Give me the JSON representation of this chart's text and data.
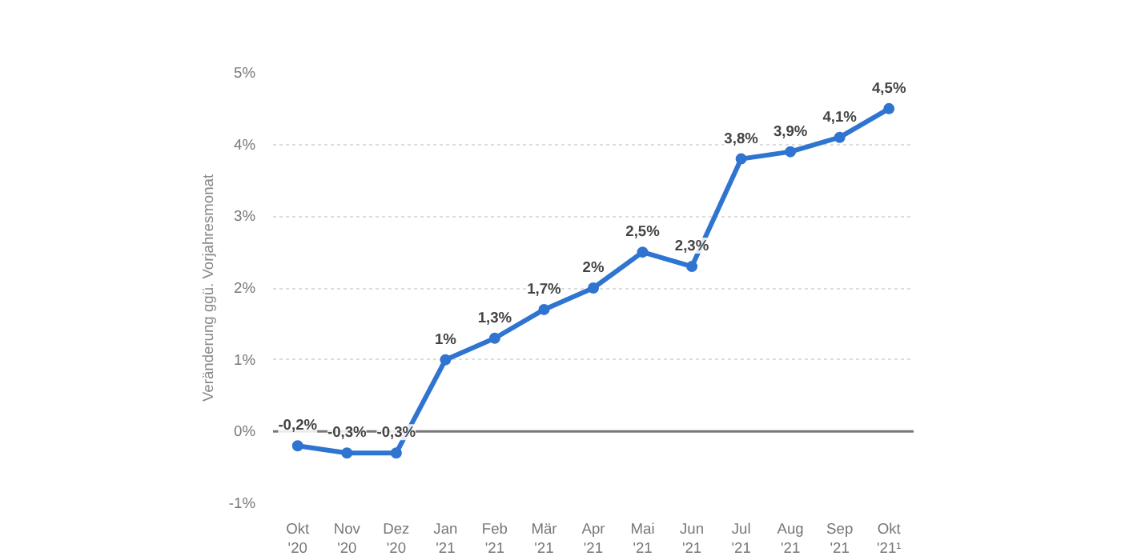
{
  "chart_data": {
    "type": "line",
    "ylabel": "Veränderung ggü. Vorjahresmonat",
    "categories": [
      "Okt\n'20",
      "Nov\n'20",
      "Dez\n'20",
      "Jan\n'21",
      "Feb\n'21",
      "Mär\n'21",
      "Apr\n'21",
      "Mai\n'21",
      "Jun\n'21",
      "Jul\n'21",
      "Aug\n'21",
      "Sep\n'21",
      "Okt\n'21¹"
    ],
    "series": [
      {
        "color": "#2f74d0",
        "values": [
          -0.2,
          -0.3,
          -0.3,
          1,
          1.3,
          1.7,
          2,
          2.5,
          2.3,
          3.8,
          3.9,
          4.1,
          4.5
        ],
        "value_labels": [
          "-0,2%",
          "-0,3%",
          "-0,3%",
          "1%",
          "1,3%",
          "1,7%",
          "2%",
          "2,5%",
          "2,3%",
          "3,8%",
          "3,9%",
          "4,1%",
          "4,5%"
        ]
      }
    ],
    "ylim": [
      -1,
      5
    ],
    "yticks": [
      {
        "value": -1,
        "label": "-1%"
      },
      {
        "value": 0,
        "label": "0%"
      },
      {
        "value": 1,
        "label": "1%"
      },
      {
        "value": 2,
        "label": "2%"
      },
      {
        "value": 3,
        "label": "3%"
      },
      {
        "value": 4,
        "label": "4%"
      },
      {
        "value": 5,
        "label": "5%"
      }
    ],
    "ref_lines": [
      {
        "axis": "y",
        "value": 0,
        "color": "#777777"
      }
    ],
    "grid": "y",
    "marker": "circle",
    "line_style": "solid"
  }
}
